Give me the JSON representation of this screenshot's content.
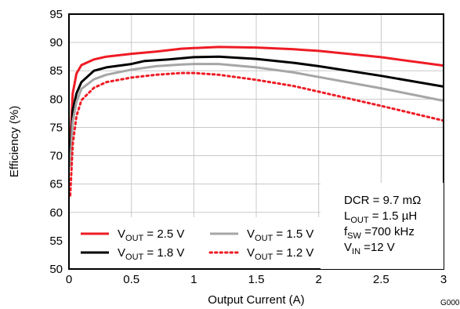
{
  "chart_data": {
    "type": "line",
    "title": "",
    "xlabel": "Output Current (A)",
    "ylabel": "Efficiency (%)",
    "xlim": [
      0,
      3
    ],
    "ylim": [
      50,
      95
    ],
    "x_ticks": [
      "0",
      "0.5",
      "1",
      "1.5",
      "2",
      "2.5",
      "3"
    ],
    "y_ticks": [
      "50",
      "55",
      "60",
      "65",
      "70",
      "75",
      "80",
      "85",
      "90",
      "95"
    ],
    "grid": true,
    "figure_id": "G000",
    "legend_position": "bottom-left",
    "series": [
      {
        "name": "VOUT = 2.5 V",
        "label_main": "V",
        "label_sub": "OUT",
        "label_rest": " = 2.5 V",
        "color": "#ee1c25",
        "dash": "solid",
        "x": [
          0.01,
          0.03,
          0.06,
          0.1,
          0.2,
          0.3,
          0.5,
          0.7,
          0.9,
          1.0,
          1.2,
          1.5,
          1.8,
          2.0,
          2.5,
          3.0
        ],
        "y": [
          72,
          81,
          84.5,
          86,
          87,
          87.5,
          88,
          88.4,
          88.9,
          89,
          89.2,
          89.1,
          88.8,
          88.5,
          87.4,
          85.9
        ]
      },
      {
        "name": "VOUT = 1.8 V",
        "label_main": "V",
        "label_sub": "OUT",
        "label_rest": " = 1.8 V",
        "color": "#000000",
        "dash": "solid",
        "x": [
          0.01,
          0.03,
          0.06,
          0.1,
          0.2,
          0.3,
          0.5,
          0.6,
          0.8,
          1.0,
          1.2,
          1.5,
          1.8,
          2.0,
          2.5,
          3.0
        ],
        "y": [
          70,
          78,
          81,
          83,
          85,
          85.6,
          86.2,
          86.7,
          87,
          87.4,
          87.5,
          87.1,
          86.4,
          85.8,
          84.1,
          82.2
        ]
      },
      {
        "name": "VOUT = 1.5 V",
        "label_main": "V",
        "label_sub": "OUT",
        "label_rest": " = 1.5 V",
        "color": "#a6a6a6",
        "dash": "solid",
        "x": [
          0.01,
          0.03,
          0.06,
          0.1,
          0.2,
          0.3,
          0.5,
          0.7,
          0.9,
          1.0,
          1.2,
          1.5,
          1.8,
          2.0,
          2.5,
          3.0
        ],
        "y": [
          68,
          76,
          79.5,
          81.8,
          83.5,
          84.3,
          85.2,
          85.8,
          86.1,
          86.2,
          86.2,
          85.6,
          84.7,
          83.9,
          81.9,
          79.7
        ]
      },
      {
        "name": "VOUT = 1.2 V",
        "label_main": "V",
        "label_sub": "OUT",
        "label_rest": " = 1.2 V",
        "color": "#ee1c25",
        "dash": "dotted",
        "x": [
          0.01,
          0.03,
          0.06,
          0.1,
          0.2,
          0.3,
          0.5,
          0.7,
          0.9,
          1.0,
          1.2,
          1.5,
          1.8,
          2.0,
          2.5,
          3.0
        ],
        "y": [
          63,
          72,
          77,
          79.8,
          82,
          83,
          83.8,
          84.3,
          84.6,
          84.6,
          84.3,
          83.4,
          82.3,
          81.3,
          78.8,
          76.2
        ]
      }
    ],
    "conditions": [
      {
        "main": "DCR = 9.7 mΩ",
        "sub": "",
        "rest": ""
      },
      {
        "main": "L",
        "sub": "OUT",
        "rest": " = 1.5 µH"
      },
      {
        "main": "f",
        "sub": "SW",
        "rest": " =700 kHz"
      },
      {
        "main": "V",
        "sub": "IN",
        "rest": " =12 V"
      }
    ]
  }
}
